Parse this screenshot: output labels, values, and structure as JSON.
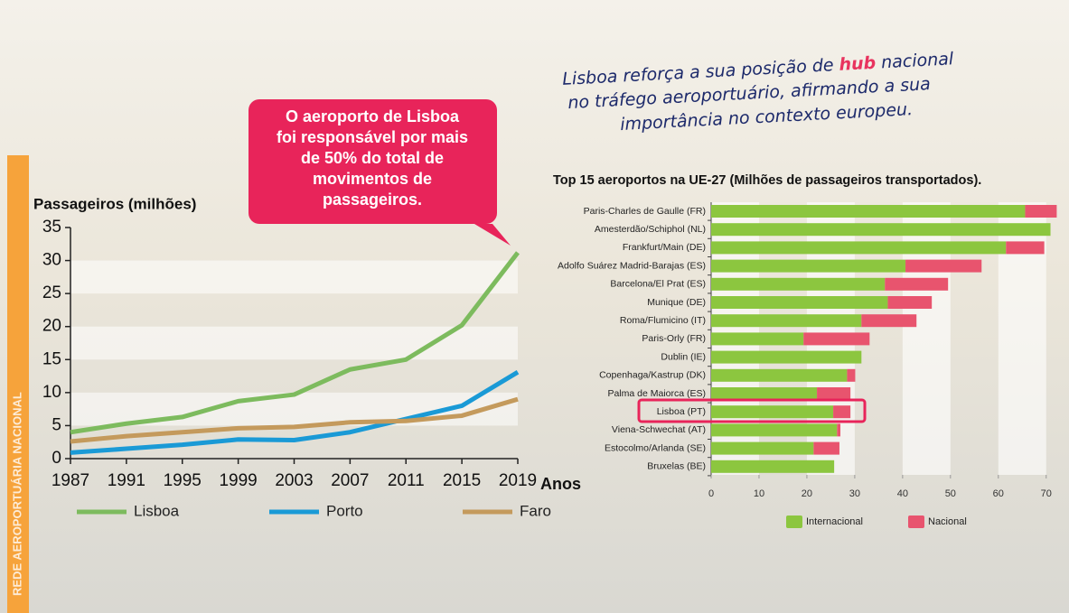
{
  "headline": {
    "start": "Lisboa reforça a sua posição de",
    "highlight": "hub",
    "end": "nacional",
    "line2": "no tráfego aeroportuário, afirmando a sua",
    "line3": "importância no contexto europeu."
  },
  "callout": [
    "O aeroporto de Lisboa",
    "foi responsável por mais",
    "de 50% do total de",
    "movimentos de",
    "passageiros."
  ],
  "side_label": "REDE AEROPORTUÁRIA NACIONAL",
  "chart_data": [
    {
      "type": "line",
      "y_label": "Passageiros (milhões)",
      "x_label": "Anos",
      "x": [
        1987,
        1991,
        1995,
        1999,
        2003,
        2007,
        2011,
        2015,
        2019
      ],
      "xlim": [
        1987,
        2019
      ],
      "xticks": [
        1987,
        1991,
        1995,
        1999,
        2003,
        2007,
        2011,
        2015,
        2019
      ],
      "ylim": [
        0,
        35
      ],
      "yticks": [
        0,
        5,
        10,
        15,
        20,
        25,
        30,
        35
      ],
      "grid": true,
      "series": [
        {
          "name": "Lisboa",
          "color": "#7dbb5e",
          "values": [
            4,
            5.3,
            6.3,
            8.7,
            9.7,
            13.5,
            15,
            20.2,
            31.2
          ]
        },
        {
          "name": "Porto",
          "color": "#1a9ad6",
          "values": [
            0.9,
            1.5,
            2.1,
            2.9,
            2.8,
            4,
            6,
            8,
            13.1
          ]
        },
        {
          "name": "Faro",
          "color": "#c49a5c",
          "values": [
            2.6,
            3.4,
            4,
            4.6,
            4.8,
            5.5,
            5.7,
            6.5,
            9
          ]
        }
      ]
    },
    {
      "type": "hbar_stacked",
      "title": "Top 15 aeroportos na UE-27 (Milhões de passageiros transportados).",
      "categories": [
        "Paris-Charles de Gaulle (FR)",
        "Amesterdão/Schiphol (NL)",
        "Frankfurt/Main (DE)",
        "Adolfo Suárez Madrid-Barajas (ES)",
        "Barcelona/El Prat (ES)",
        "Munique (DE)",
        "Roma/Flumicino (IT)",
        "Paris-Orly (FR)",
        "Dublin (IE)",
        "Copenhaga/Kastrup (DK)",
        "Palma de Maiorca (ES)",
        "Lisboa (PT)",
        "Viena-Schwechat (AT)",
        "Estocolmo/Arlanda (SE)",
        "Bruxelas (BE)"
      ],
      "xlim": [
        0,
        72.5
      ],
      "xticks": [
        0,
        10,
        20,
        30,
        40,
        50,
        60,
        70
      ],
      "series": [
        {
          "name": "Internacional",
          "color": "#8cc63f",
          "values": [
            65.6,
            70.9,
            61.6,
            40.6,
            36.3,
            36.9,
            31.4,
            19.3,
            31.4,
            28.4,
            22.1,
            25.5,
            26.3,
            21.4,
            25.7
          ]
        },
        {
          "name": "Nacional",
          "color": "#e8546e",
          "values": [
            6.6,
            0,
            8,
            15.9,
            13.2,
            9.2,
            11.5,
            13.8,
            0,
            1.7,
            7,
            3.6,
            0.7,
            5.4,
            0
          ]
        }
      ]
    }
  ]
}
